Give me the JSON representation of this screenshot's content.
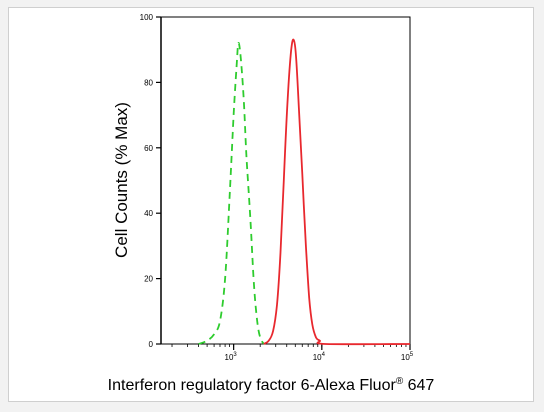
{
  "chart_data": {
    "type": "line",
    "xlabel_main": "Interferon regulatory factor 6-Alexa Fluor",
    "xlabel_sup": "®",
    "xlabel_end": " 647",
    "ylabel": "Cell Counts (% Max)",
    "x_scale": "log",
    "xlim": [
      150,
      100000
    ],
    "ylim": [
      0,
      100
    ],
    "y_ticks": [
      {
        "value": 0,
        "label": "0"
      },
      {
        "value": 20,
        "label": "20"
      },
      {
        "value": 40,
        "label": "40"
      },
      {
        "value": 60,
        "label": "60"
      },
      {
        "value": 80,
        "label": "80"
      },
      {
        "value": 100,
        "label": "100"
      }
    ],
    "x_ticks": [
      {
        "value": 1000,
        "base": "10",
        "exp": "3"
      },
      {
        "value": 10000,
        "base": "10",
        "exp": "4"
      },
      {
        "value": 100000,
        "base": "10",
        "exp": "5"
      }
    ],
    "series": [
      {
        "color": "#2ecc2e",
        "dash": "dashed",
        "points": [
          [
            400,
            0
          ],
          [
            500,
            1
          ],
          [
            600,
            3
          ],
          [
            700,
            7
          ],
          [
            800,
            20
          ],
          [
            900,
            45
          ],
          [
            1000,
            70
          ],
          [
            1080,
            85
          ],
          [
            1130,
            92
          ],
          [
            1200,
            88
          ],
          [
            1300,
            75
          ],
          [
            1400,
            57
          ],
          [
            1550,
            38
          ],
          [
            1700,
            18
          ],
          [
            1850,
            7
          ],
          [
            2000,
            2
          ],
          [
            2200,
            0
          ]
        ]
      },
      {
        "color": "#e8282e",
        "dash": "solid",
        "points": [
          [
            2200,
            0
          ],
          [
            2500,
            1
          ],
          [
            2800,
            4
          ],
          [
            3100,
            12
          ],
          [
            3400,
            28
          ],
          [
            3700,
            50
          ],
          [
            4100,
            75
          ],
          [
            4500,
            90
          ],
          [
            4800,
            93
          ],
          [
            5100,
            88
          ],
          [
            5500,
            72
          ],
          [
            6000,
            52
          ],
          [
            6600,
            30
          ],
          [
            7200,
            14
          ],
          [
            7800,
            6
          ],
          [
            8600,
            2
          ],
          [
            9500,
            1
          ],
          [
            11000,
            0
          ],
          [
            100000,
            0
          ]
        ]
      }
    ]
  }
}
